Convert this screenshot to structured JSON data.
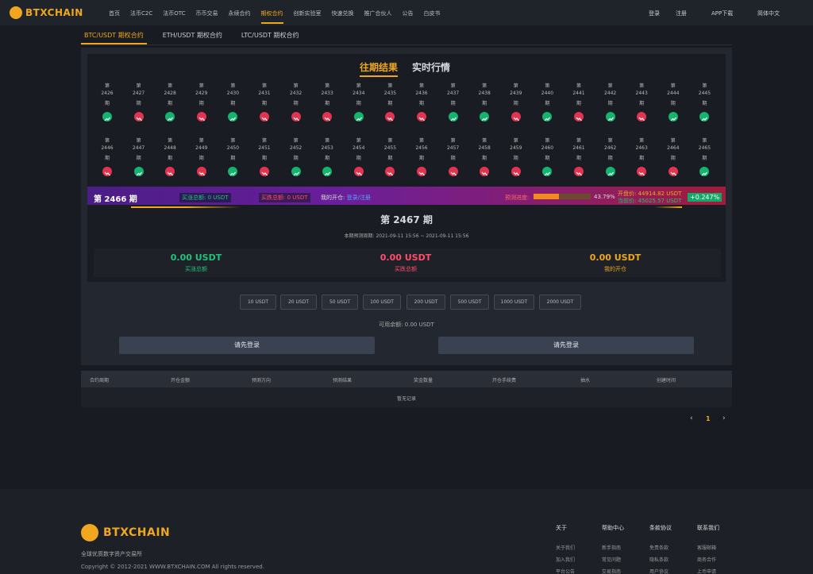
{
  "nav": {
    "logo": "BTXCHAIN",
    "links": [
      "首页",
      "法币C2C",
      "法币OTC",
      "币币交易",
      "永续合约",
      "期权合约",
      "创新实验室",
      "快速兑换",
      "推广合伙人",
      "公告",
      "白皮书"
    ],
    "login": "登录",
    "register": "注册",
    "app": "APP下载",
    "lang": "简体中文"
  },
  "tabs": [
    "BTC/USDT 期权合约",
    "ETH/USDT 期权合约",
    "LTC/USDT 期权合约"
  ],
  "panel_tabs": [
    "往期结果",
    "实时行情"
  ],
  "period_prefix": "第",
  "period_suffix": "期",
  "periods": [
    {
      "no": 2426,
      "trend": "up"
    },
    {
      "no": 2427,
      "trend": "down"
    },
    {
      "no": 2428,
      "trend": "up"
    },
    {
      "no": 2429,
      "trend": "down"
    },
    {
      "no": 2430,
      "trend": "up"
    },
    {
      "no": 2431,
      "trend": "down"
    },
    {
      "no": 2432,
      "trend": "down"
    },
    {
      "no": 2433,
      "trend": "down"
    },
    {
      "no": 2434,
      "trend": "up"
    },
    {
      "no": 2435,
      "trend": "down"
    },
    {
      "no": 2436,
      "trend": "down"
    },
    {
      "no": 2437,
      "trend": "up"
    },
    {
      "no": 2438,
      "trend": "up"
    },
    {
      "no": 2439,
      "trend": "down"
    },
    {
      "no": 2440,
      "trend": "up"
    },
    {
      "no": 2441,
      "trend": "down"
    },
    {
      "no": 2442,
      "trend": "up"
    },
    {
      "no": 2443,
      "trend": "down"
    },
    {
      "no": 2444,
      "trend": "up"
    },
    {
      "no": 2445,
      "trend": "up"
    },
    {
      "no": 2446,
      "trend": "down"
    },
    {
      "no": 2447,
      "trend": "up"
    },
    {
      "no": 2448,
      "trend": "down"
    },
    {
      "no": 2449,
      "trend": "down"
    },
    {
      "no": 2450,
      "trend": "up"
    },
    {
      "no": 2451,
      "trend": "down"
    },
    {
      "no": 2452,
      "trend": "up"
    },
    {
      "no": 2453,
      "trend": "up"
    },
    {
      "no": 2454,
      "trend": "down"
    },
    {
      "no": 2455,
      "trend": "down"
    },
    {
      "no": 2456,
      "trend": "down"
    },
    {
      "no": 2457,
      "trend": "down"
    },
    {
      "no": 2458,
      "trend": "down"
    },
    {
      "no": 2459,
      "trend": "down"
    },
    {
      "no": 2460,
      "trend": "up"
    },
    {
      "no": 2461,
      "trend": "down"
    },
    {
      "no": 2462,
      "trend": "up"
    },
    {
      "no": 2463,
      "trend": "down"
    },
    {
      "no": 2464,
      "trend": "down"
    },
    {
      "no": 2465,
      "trend": "up"
    }
  ],
  "current": {
    "title": "第 2466 期",
    "buy_up_label": "买涨总额:",
    "buy_up": "0 USDT",
    "buy_down_label": "买跌总额:",
    "buy_down": "0 USDT",
    "my_label": "我的开仓:",
    "my_link": "登录/注册",
    "progress_label": "预测进度:",
    "progress": 43.79,
    "progress_text": "43.79%",
    "open_label": "开盘价:",
    "open": "44914.82 USDT",
    "now_label": "当前价:",
    "now": "45025.57 USDT",
    "change": "+0.247%"
  },
  "next": {
    "title": "第 2467 期",
    "cycle_label": "本期预测周期:",
    "cycle": "2021-09-11 15:56 ~ 2021-09-11 15:56"
  },
  "stats": [
    {
      "value": "0.00 USDT",
      "label": "买涨总额"
    },
    {
      "value": "0.00 USDT",
      "label": "买跌总额"
    },
    {
      "value": "0.00 USDT",
      "label": "我的开仓"
    }
  ],
  "amounts": [
    "10 USDT",
    "20 USDT",
    "50 USDT",
    "100 USDT",
    "200 USDT",
    "500 USDT",
    "1000 USDT",
    "2000 USDT"
  ],
  "balance_label": "可用余额:",
  "balance": "0.00 USDT",
  "buttons": [
    "请先登录",
    "请先登录"
  ],
  "table": {
    "headers": [
      "合约周期",
      "开仓金额",
      "预测方向",
      "预测结果",
      "奖金数量",
      "开仓手续费",
      "抽水",
      "创建时间"
    ],
    "empty": "暂无记录"
  },
  "pagination": {
    "prev": "‹",
    "page": "1",
    "next": "›"
  },
  "footer": {
    "logo": "BTXCHAIN",
    "slogan": "全球优质数字资产交易所",
    "copyright": "Copyright © 2012-2021 WWW.BTXCHAIN.COM All rights reserved.",
    "columns": [
      {
        "title": "关于",
        "items": [
          "关于我们",
          "加入我们",
          "平台公告"
        ]
      },
      {
        "title": "帮助中心",
        "items": [
          "新手指南",
          "常见问题",
          "交易指南"
        ]
      },
      {
        "title": "条款协议",
        "items": [
          "免责条款",
          "隐私条款",
          "用户协议"
        ]
      },
      {
        "title": "联系我们",
        "items": [
          "客服邮箱",
          "商务合作",
          "上币申请"
        ]
      }
    ]
  }
}
